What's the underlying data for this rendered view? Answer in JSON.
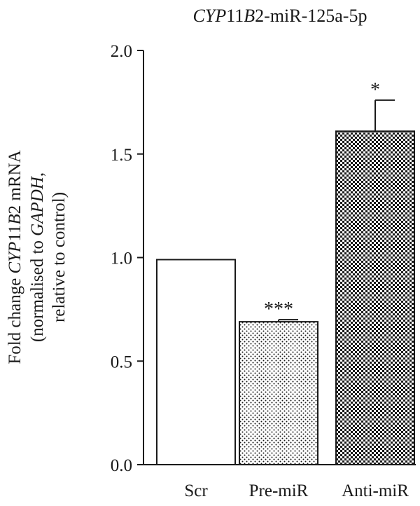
{
  "chart_data": {
    "type": "bar",
    "title": "CYP11B2-miR-125a-5p",
    "title_parts": [
      {
        "text": "CYP",
        "italic": true
      },
      {
        "text": "11",
        "italic": false
      },
      {
        "text": "B",
        "italic": true
      },
      {
        "text": "2-miR-125a-5p",
        "italic": false
      }
    ],
    "ylabel_lines": [
      [
        {
          "text": "Fold change ",
          "italic": false
        },
        {
          "text": "CYP",
          "italic": true
        },
        {
          "text": "11",
          "italic": false
        },
        {
          "text": "B",
          "italic": true
        },
        {
          "text": "2 mRNA",
          "italic": false
        }
      ],
      [
        {
          "text": "(normalised to ",
          "italic": false
        },
        {
          "text": "GAPDH",
          "italic": true
        },
        {
          "text": ",",
          "italic": false
        }
      ],
      [
        {
          "text": "relative to control)",
          "italic": false
        }
      ]
    ],
    "ylim": [
      0,
      2.0
    ],
    "yticks": [
      "0.0",
      "0.5",
      "1.0",
      "1.5",
      "2.0"
    ],
    "categories": [
      "Scr",
      "Pre-miR",
      "Anti-miR"
    ],
    "values": [
      0.99,
      0.69,
      1.61
    ],
    "errors": [
      0,
      0.01,
      0.15
    ],
    "annotations": [
      "",
      "***",
      "*"
    ],
    "patterns": [
      "none",
      "dots",
      "checker"
    ],
    "grid": false
  }
}
